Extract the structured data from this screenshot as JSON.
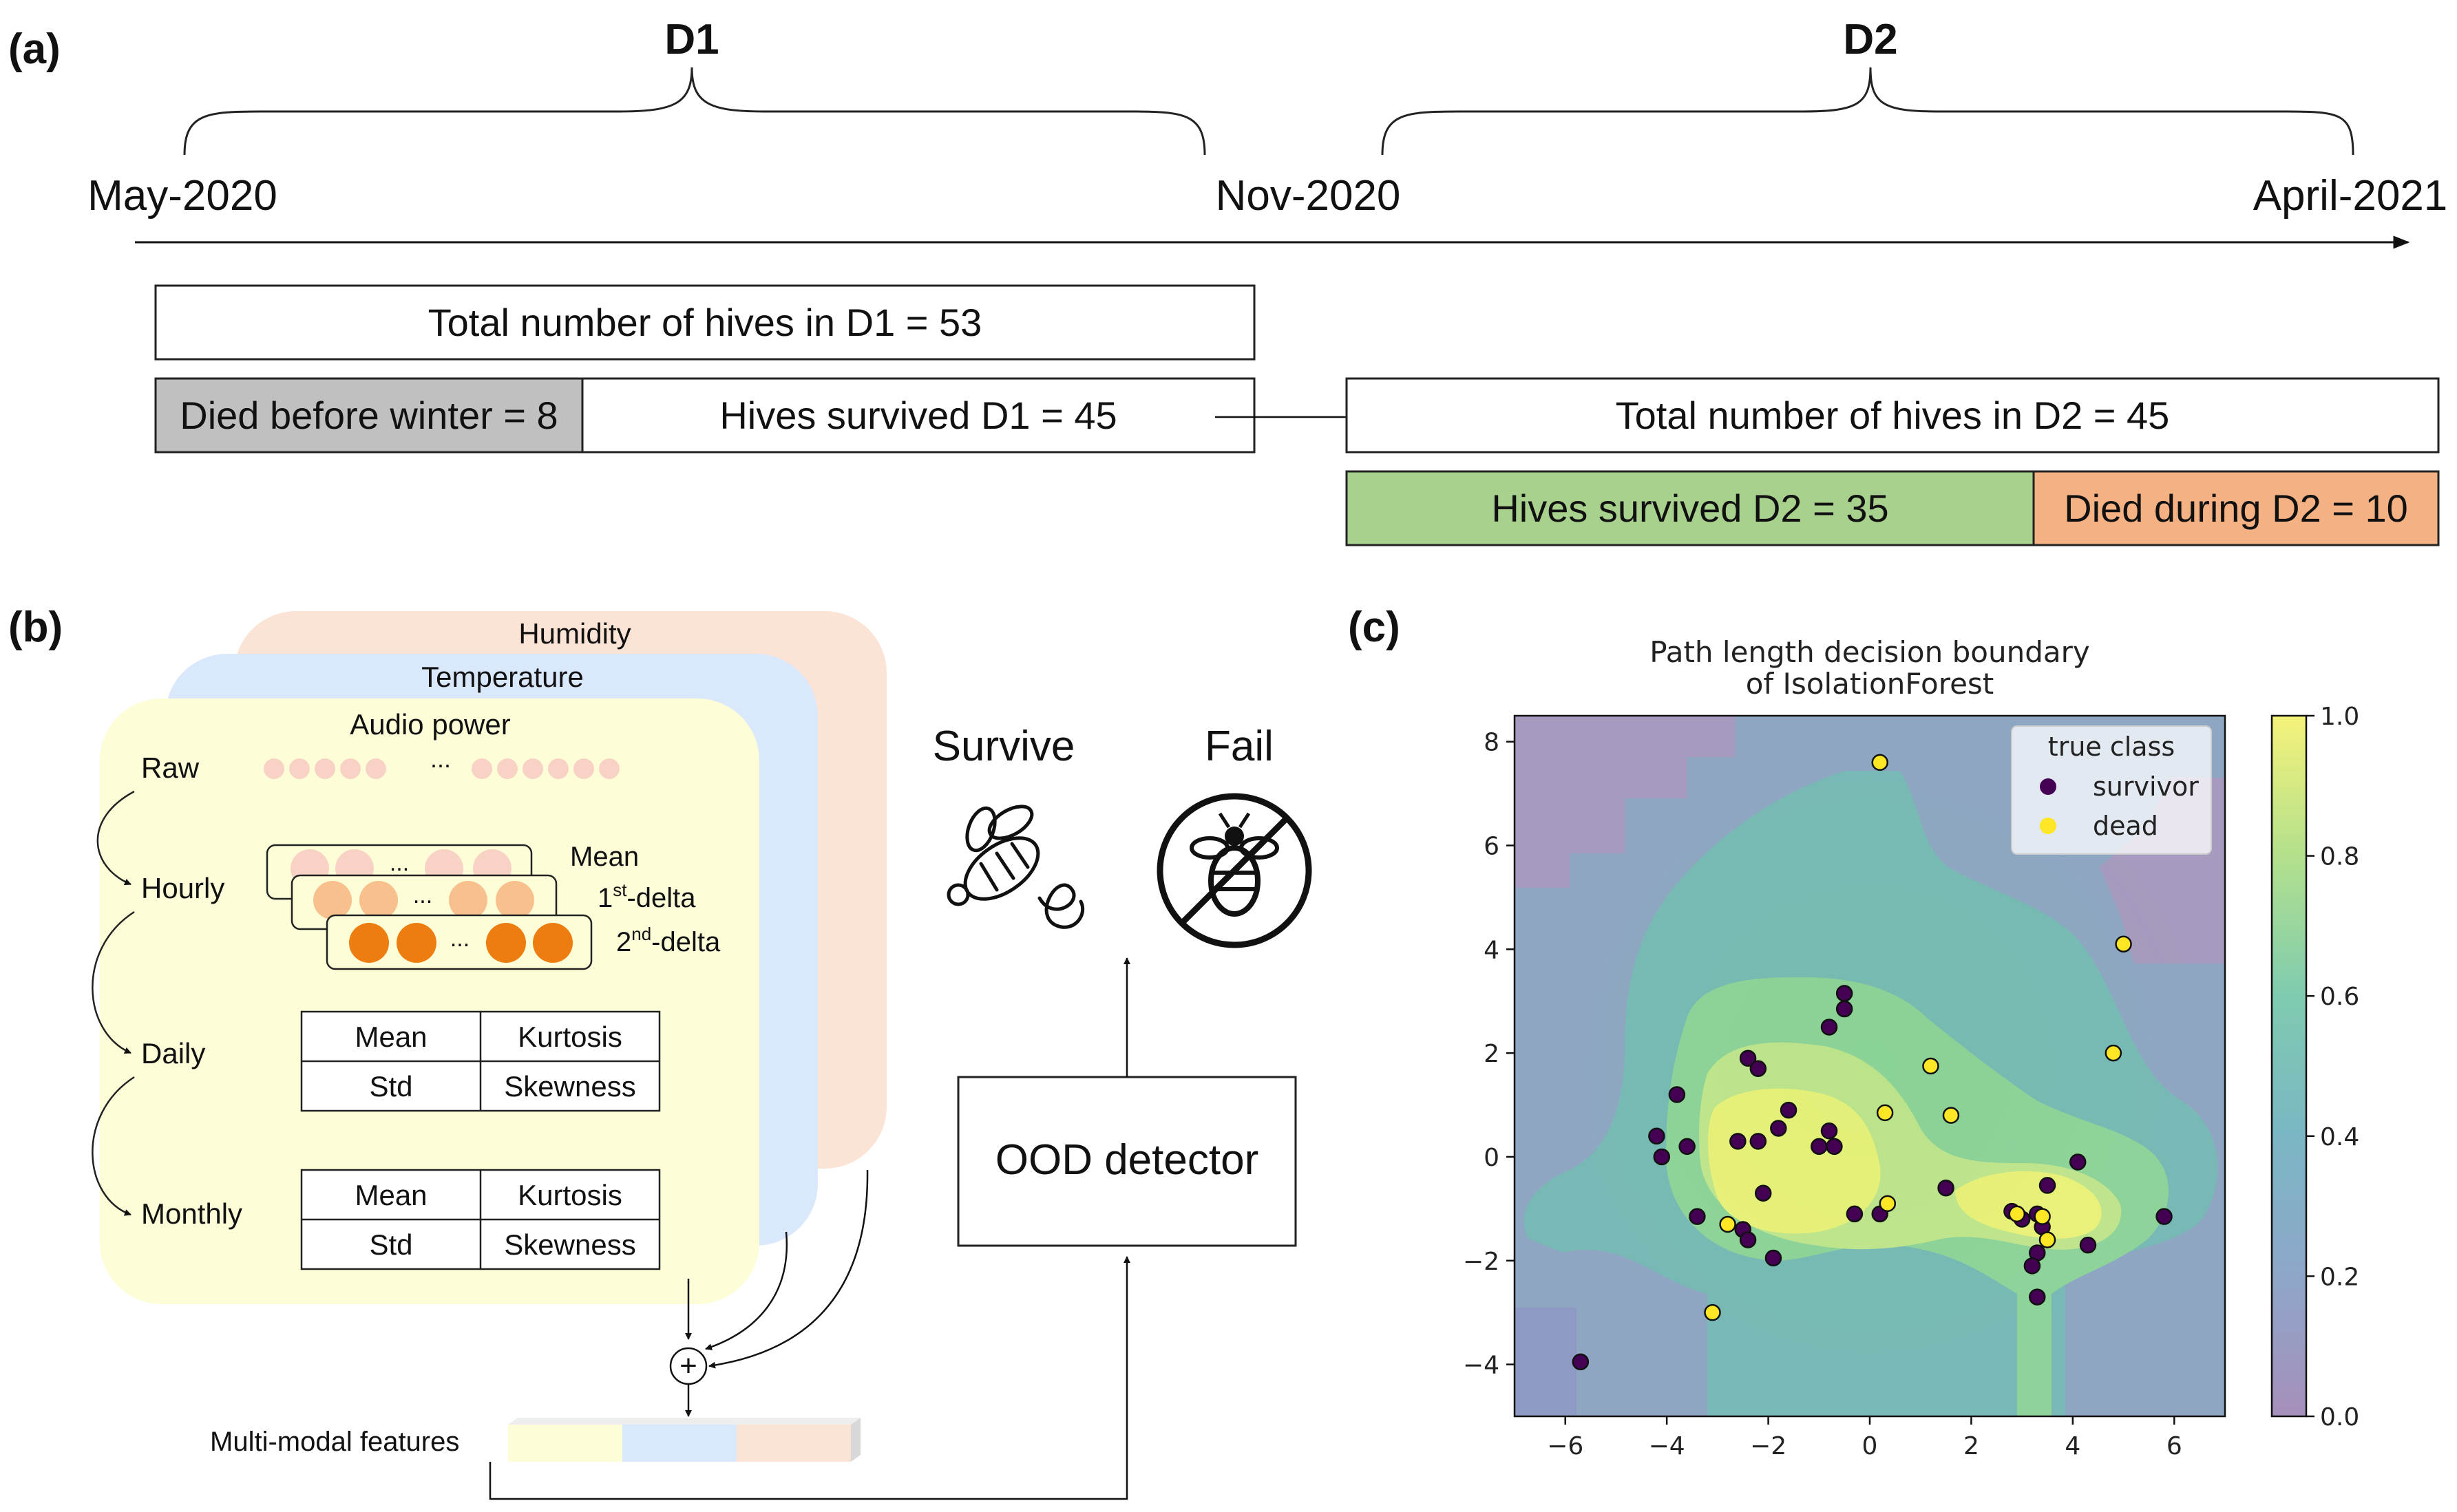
{
  "panel_a": {
    "label": "(a)",
    "d1": "D1",
    "d2": "D2",
    "dates": [
      "May-2020",
      "Nov-2020",
      "April-2021"
    ],
    "total_d1": "Total number of hives in D1 = 53",
    "died_before_winter": "Died before winter = 8",
    "survived_d1": "Hives survived D1 = 45",
    "total_d2": "Total number of hives in D2 = 45",
    "survived_d2": "Hives survived D2 = 35",
    "died_d2": "Died during D2 = 10",
    "colors": {
      "died_before": "#c0c0c0",
      "survived_d2": "#a9d18e",
      "died_d2": "#f4b183"
    }
  },
  "panel_b": {
    "label": "(b)",
    "layers": [
      "Humidity",
      "Temperature",
      "Audio power"
    ],
    "levels": [
      "Raw",
      "Hourly",
      "Daily",
      "Monthly"
    ],
    "ellipsis": "...",
    "deltas": {
      "mean": "Mean",
      "first_pre": "1",
      "first_sup": "st",
      "first_post": "-delta",
      "second_pre": "2",
      "second_sup": "nd",
      "second_post": "-delta"
    },
    "daily_table": [
      [
        "Mean",
        "Kurtosis"
      ],
      [
        "Std",
        "Skewness"
      ]
    ],
    "monthly_table": [
      [
        "Mean",
        "Kurtosis"
      ],
      [
        "Std",
        "Skewness"
      ]
    ],
    "multimodal": "Multi-modal features",
    "plus": "+",
    "survive": "Survive",
    "fail": "Fail",
    "ood": "OOD detector",
    "colors": {
      "humidity": "#fbe4d5",
      "temperature": "#dae8fc",
      "audio": "#fdfdd8"
    }
  },
  "panel_c": {
    "label": "(c)"
  },
  "chart_data": {
    "type": "scatter",
    "title": "Path length decision boundary\nof IsolationForest",
    "title_lines": [
      "Path length decision boundary",
      "of IsolationForest"
    ],
    "xlim": [
      -7,
      7
    ],
    "ylim": [
      -5,
      8.5
    ],
    "xticks": [
      -6,
      -4,
      -2,
      0,
      2,
      4,
      6
    ],
    "yticks": [
      -4,
      -2,
      0,
      2,
      4,
      6,
      8
    ],
    "xtick_labels": [
      "−6",
      "−4",
      "−2",
      "0",
      "2",
      "4",
      "6"
    ],
    "ytick_labels": [
      "−4",
      "−2",
      "0",
      "2",
      "4",
      "6",
      "8"
    ],
    "colorbar": {
      "range": [
        0.0,
        1.0
      ],
      "ticks": [
        "0.0",
        "0.2",
        "0.4",
        "0.6",
        "0.8",
        "1.0"
      ]
    },
    "legend": {
      "title": "true class",
      "placement": "top-right"
    },
    "series": [
      {
        "name": "survivor",
        "color": "#440154",
        "points": [
          [
            -5.7,
            -3.95
          ],
          [
            -4.2,
            0.4
          ],
          [
            -4.1,
            0.0
          ],
          [
            -3.8,
            1.2
          ],
          [
            -3.6,
            0.2
          ],
          [
            -3.4,
            -1.15
          ],
          [
            -2.5,
            -1.4
          ],
          [
            -2.4,
            -1.6
          ],
          [
            -2.6,
            0.3
          ],
          [
            -2.4,
            1.9
          ],
          [
            -2.2,
            0.3
          ],
          [
            -2.1,
            -0.7
          ],
          [
            -2.2,
            1.7
          ],
          [
            -1.9,
            -1.95
          ],
          [
            -1.6,
            0.9
          ],
          [
            -1.8,
            0.55
          ],
          [
            -1.0,
            0.2
          ],
          [
            -0.8,
            2.5
          ],
          [
            -0.5,
            2.85
          ],
          [
            -0.5,
            3.15
          ],
          [
            -0.8,
            0.5
          ],
          [
            -0.7,
            0.2
          ],
          [
            -0.3,
            -1.1
          ],
          [
            0.2,
            -1.1
          ],
          [
            1.5,
            -0.6
          ],
          [
            2.8,
            -1.05
          ],
          [
            3.0,
            -1.2
          ],
          [
            3.3,
            -1.1
          ],
          [
            3.4,
            -1.35
          ],
          [
            3.3,
            -1.85
          ],
          [
            3.2,
            -2.1
          ],
          [
            3.3,
            -2.7
          ],
          [
            3.5,
            -0.55
          ],
          [
            4.1,
            -0.1
          ],
          [
            4.3,
            -1.7
          ],
          [
            5.8,
            -1.15
          ]
        ]
      },
      {
        "name": "dead",
        "color": "#fde725",
        "points": [
          [
            0.2,
            7.6
          ],
          [
            5.0,
            4.1
          ],
          [
            4.8,
            2.0
          ],
          [
            1.2,
            1.75
          ],
          [
            1.6,
            0.8
          ],
          [
            0.3,
            0.85
          ],
          [
            -3.1,
            -3.0
          ],
          [
            -2.8,
            -1.3
          ],
          [
            0.35,
            -0.9
          ],
          [
            2.9,
            -1.1
          ],
          [
            3.4,
            -1.15
          ],
          [
            3.5,
            -1.6
          ]
        ]
      }
    ]
  }
}
